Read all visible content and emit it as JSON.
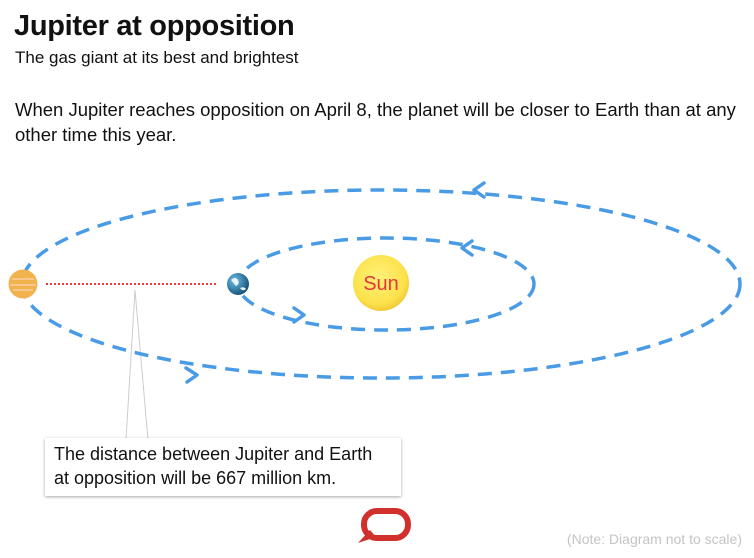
{
  "header": {
    "title": "Jupiter at opposition",
    "subtitle": "The gas giant at its best and brightest"
  },
  "description": "When Jupiter reaches opposition on April 8, the planet will be closer to Earth than at any other time this year.",
  "diagram": {
    "sun_label": "Sun",
    "callout": "The distance between Jupiter and Earth at opposition will be 667 million km.",
    "note": "(Note: Diagram not to scale)",
    "colors": {
      "orbit": "#4a9be6",
      "distance_line": "#e53935",
      "sun": "#fbe14a",
      "sun_label": "#e5373a",
      "jupiter": "#f2b24e",
      "earth": "#1f6f9c",
      "logo": "#d0312d"
    },
    "icons": [
      "jupiter-icon",
      "earth-icon",
      "sun-icon",
      "speech-bubble-logo-icon"
    ]
  }
}
